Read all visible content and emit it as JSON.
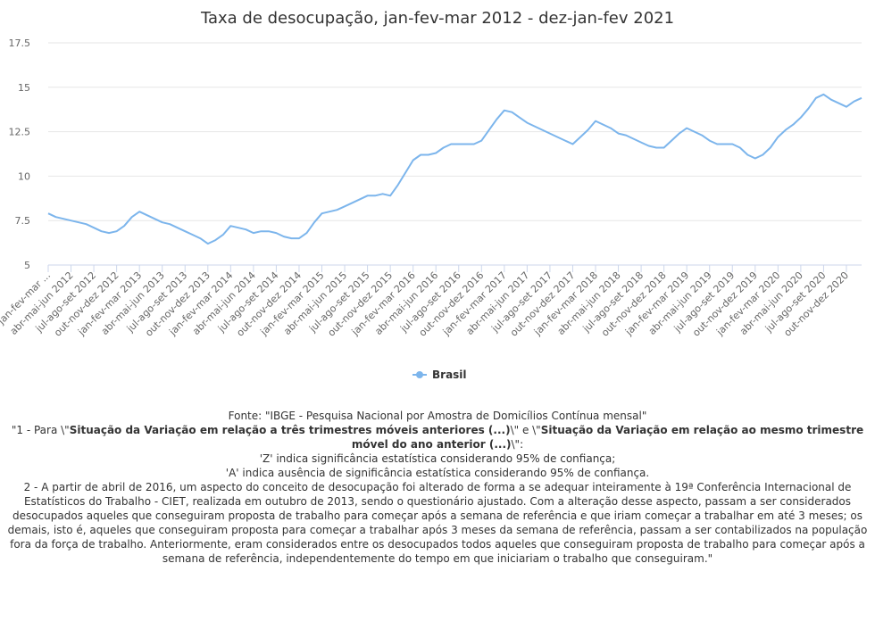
{
  "chart_data": {
    "type": "line",
    "title": "Taxa de desocupação, jan-fev-mar 2012 - dez-jan-fev 2021",
    "xlabel": "",
    "ylabel": "",
    "ylim": [
      5,
      17.5
    ],
    "yticks": [
      "5",
      "7.5",
      "10",
      "12.5",
      "15",
      "17.5"
    ],
    "grid": true,
    "legend": "bottom-center",
    "color": "#7cb5ec",
    "x_tick_labels": [
      "jan-fev-mar ...",
      "abr-mai-jun 2012",
      "jul-ago-set 2012",
      "out-nov-dez 2012",
      "jan-fev-mar 2013",
      "abr-mai-jun 2013",
      "jul-ago-set 2013",
      "out-nov-dez 2013",
      "jan-fev-mar 2014",
      "abr-mai-jun 2014",
      "jul-ago-set 2014",
      "out-nov-dez 2014",
      "jan-fev-mar 2015",
      "abr-mai-jun 2015",
      "jul-ago-set 2015",
      "out-nov-dez 2015",
      "jan-fev-mar 2016",
      "abr-mai-jun 2016",
      "jul-ago-set 2016",
      "out-nov-dez 2016",
      "jan-fev-mar 2017",
      "abr-mai-jun 2017",
      "jul-ago-set 2017",
      "out-nov-dez 2017",
      "jan-fev-mar 2018",
      "abr-mai-jun 2018",
      "jul-ago-set 2018",
      "out-nov-dez 2018",
      "jan-fev-mar 2019",
      "abr-mai-jun 2019",
      "jul-ago-set 2019",
      "out-nov-dez 2019",
      "jan-fev-mar 2020",
      "abr-mai-jun 2020",
      "jul-ago-set 2020",
      "out-nov-dez 2020"
    ],
    "series": [
      {
        "name": "Brasil",
        "values": [
          7.9,
          7.7,
          7.6,
          7.5,
          7.4,
          7.3,
          7.1,
          6.9,
          6.8,
          6.9,
          7.2,
          7.7,
          8.0,
          7.8,
          7.6,
          7.4,
          7.3,
          7.1,
          6.9,
          6.7,
          6.5,
          6.2,
          6.4,
          6.7,
          7.2,
          7.1,
          7.0,
          6.8,
          6.9,
          6.9,
          6.8,
          6.6,
          6.5,
          6.5,
          6.8,
          7.4,
          7.9,
          8.0,
          8.1,
          8.3,
          8.5,
          8.7,
          8.9,
          8.9,
          9.0,
          8.9,
          9.5,
          10.2,
          10.9,
          11.2,
          11.2,
          11.3,
          11.6,
          11.8,
          11.8,
          11.8,
          11.8,
          12.0,
          12.6,
          13.2,
          13.7,
          13.6,
          13.3,
          13.0,
          12.8,
          12.6,
          12.4,
          12.2,
          12.0,
          11.8,
          12.2,
          12.6,
          13.1,
          12.9,
          12.7,
          12.4,
          12.3,
          12.1,
          11.9,
          11.7,
          11.6,
          11.6,
          12.0,
          12.4,
          12.7,
          12.5,
          12.3,
          12.0,
          11.8,
          11.8,
          11.8,
          11.6,
          11.2,
          11.0,
          11.2,
          11.6,
          12.2,
          12.6,
          12.9,
          13.3,
          13.8,
          14.4,
          14.6,
          14.3,
          14.1,
          13.9,
          14.2,
          14.4
        ]
      }
    ]
  },
  "notes": {
    "source": "Fonte: \"IBGE - Pesquisa Nacional por Amostra de Domicílios Contínua mensal\"",
    "note1_prefix": "\"1 - Para \\\"",
    "note1_bold1": "Situação da Variação em relação a três trimestres móveis anteriores (...)",
    "note1_mid": "\\\" e \\\"",
    "note1_bold2": "Situação da Variação em relação ao mesmo trimestre móvel do ano anterior (...)",
    "note1_suffix": "\\\":",
    "note_z": "'Z' indica significância estatística considerando 95% de confiança;",
    "note_a": "'A' indica ausência de significância estatística considerando 95% de confiança.",
    "note2": "2 - A partir de abril de 2016, um aspecto do conceito de desocupação foi alterado de forma a se adequar inteiramente à 19ª Conferência Internacional de Estatísticos do Trabalho - CIET, realizada em outubro de 2013, sendo o questionário ajustado. Com a alteração desse aspecto, passam a ser considerados desocupados aqueles que conseguiram proposta de trabalho para começar após a semana de referência e que iriam começar a trabalhar em até 3 meses; os demais, isto é, aqueles que conseguiram proposta para começar a trabalhar após 3 meses da semana de referência, passam a ser contabilizados na população fora da força de trabalho. Anteriormente, eram considerados entre os desocupados todos aqueles que conseguiram proposta de trabalho para começar após a semana de referência, independentemente do tempo em que iniciariam o trabalho que conseguiram.\""
  }
}
